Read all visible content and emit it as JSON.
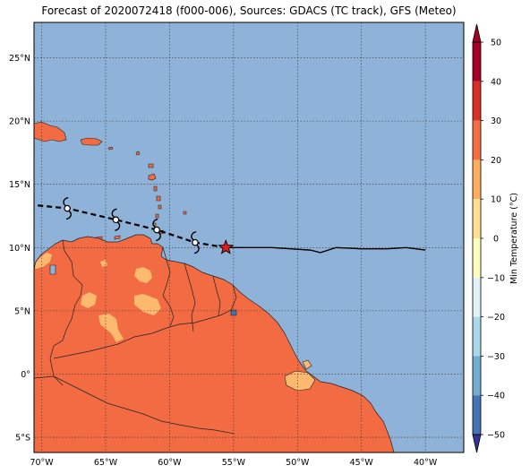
{
  "title": "Forecast of 2020072418 (f000-006), Sources: GDACS (TC track), GFS (Meteo)",
  "map": {
    "lon_range": [
      -70.6,
      -37.0
    ],
    "lat_range": [
      -6.2,
      27.8
    ],
    "lon_ticks": [
      {
        "value": -70,
        "label": "70°W"
      },
      {
        "value": -65,
        "label": "65°W"
      },
      {
        "value": -60,
        "label": "60°W"
      },
      {
        "value": -55,
        "label": "55°W"
      },
      {
        "value": -50,
        "label": "50°W"
      },
      {
        "value": -45,
        "label": "45°W"
      },
      {
        "value": -40,
        "label": "40°W"
      }
    ],
    "lat_ticks": [
      {
        "value": 25,
        "label": "25°N"
      },
      {
        "value": 20,
        "label": "20°N"
      },
      {
        "value": 15,
        "label": "15°N"
      },
      {
        "value": 10,
        "label": "10°N"
      },
      {
        "value": 5,
        "label": "5°N"
      },
      {
        "value": 0,
        "label": "0°"
      },
      {
        "value": -5,
        "label": "5°S"
      }
    ],
    "grid": "dotted",
    "colors": {
      "ocean": "#8fb2d8",
      "land": "#f26b43",
      "warm_patch": "#fdb96e",
      "track": "#000000",
      "current_position": "#e31a1c",
      "coast": "#222222"
    }
  },
  "storm": {
    "current_position": {
      "lon": -55.6,
      "lat": 10.0
    },
    "forecast_track": [
      {
        "lon": -55.6,
        "lat": 10.0
      },
      {
        "lon": -52.0,
        "lat": 10.0
      },
      {
        "lon": -49.0,
        "lat": 9.8
      },
      {
        "lon": -48.2,
        "lat": 9.6
      },
      {
        "lon": -47.0,
        "lat": 10.0
      },
      {
        "lon": -45.0,
        "lat": 9.9
      },
      {
        "lon": -43.0,
        "lat": 9.9
      },
      {
        "lon": -41.5,
        "lat": 10.0
      },
      {
        "lon": -40.0,
        "lat": 9.8
      }
    ],
    "past_track": [
      {
        "lon": -71.0,
        "lat": 13.4
      },
      {
        "lon": -68.0,
        "lat": 13.1
      },
      {
        "lon": -64.2,
        "lat": 12.2
      },
      {
        "lon": -61.0,
        "lat": 11.4
      },
      {
        "lon": -58.0,
        "lat": 10.4
      },
      {
        "lon": -55.6,
        "lat": 10.0
      }
    ],
    "past_positions": [
      {
        "lon": -68.0,
        "lat": 13.1
      },
      {
        "lon": -64.2,
        "lat": 12.2
      },
      {
        "lon": -61.0,
        "lat": 11.4
      },
      {
        "lon": -58.0,
        "lat": 10.4
      }
    ]
  },
  "colorbar": {
    "label": "Min Temperature (°C)",
    "ticks": [
      50,
      40,
      30,
      20,
      10,
      0,
      -10,
      -20,
      -30,
      -40,
      -50
    ],
    "colors_top_to_bottom": [
      "#a50026",
      "#d73027",
      "#f46d43",
      "#fdae61",
      "#fee090",
      "#ffffbf",
      "#e0f3f8",
      "#abd9e9",
      "#74add1",
      "#4575b4",
      "#313695"
    ],
    "extend_top_color": "#a50026",
    "extend_bottom_color": "#313695"
  }
}
